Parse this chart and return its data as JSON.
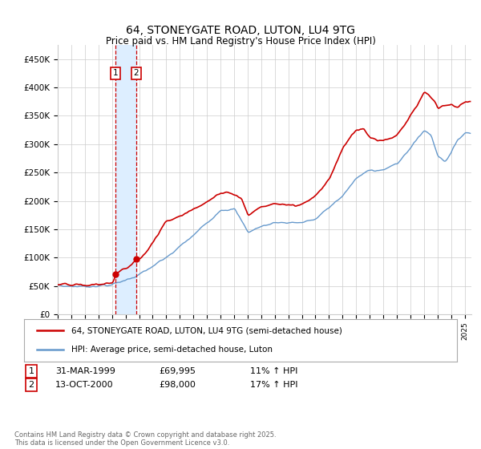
{
  "title": "64, STONEYGATE ROAD, LUTON, LU4 9TG",
  "subtitle": "Price paid vs. HM Land Registry's House Price Index (HPI)",
  "red_label": "64, STONEYGATE ROAD, LUTON, LU4 9TG (semi-detached house)",
  "blue_label": "HPI: Average price, semi-detached house, Luton",
  "footnote": "Contains HM Land Registry data © Crown copyright and database right 2025.\nThis data is licensed under the Open Government Licence v3.0.",
  "transaction1": {
    "num": "1",
    "date": "31-MAR-1999",
    "price": "£69,995",
    "hpi": "11% ↑ HPI"
  },
  "transaction2": {
    "num": "2",
    "date": "13-OCT-2000",
    "price": "£98,000",
    "hpi": "17% ↑ HPI"
  },
  "vline1_x": 1999.25,
  "vline2_x": 2000.79,
  "dot1_x": 1999.25,
  "dot1_y": 69995,
  "dot2_x": 2000.79,
  "dot2_y": 98000,
  "ylim": [
    0,
    475000
  ],
  "yticks": [
    0,
    50000,
    100000,
    150000,
    200000,
    250000,
    300000,
    350000,
    400000,
    450000
  ],
  "ytick_labels": [
    "£0",
    "£50K",
    "£100K",
    "£150K",
    "£200K",
    "£250K",
    "£300K",
    "£350K",
    "£400K",
    "£450K"
  ],
  "red_color": "#cc0000",
  "blue_color": "#6699cc",
  "vline_color": "#cc0000",
  "shade_color": "#ddeeff",
  "background_color": "#ffffff",
  "grid_color": "#cccccc",
  "xlim_left": 1995,
  "xlim_right": 2025.5
}
